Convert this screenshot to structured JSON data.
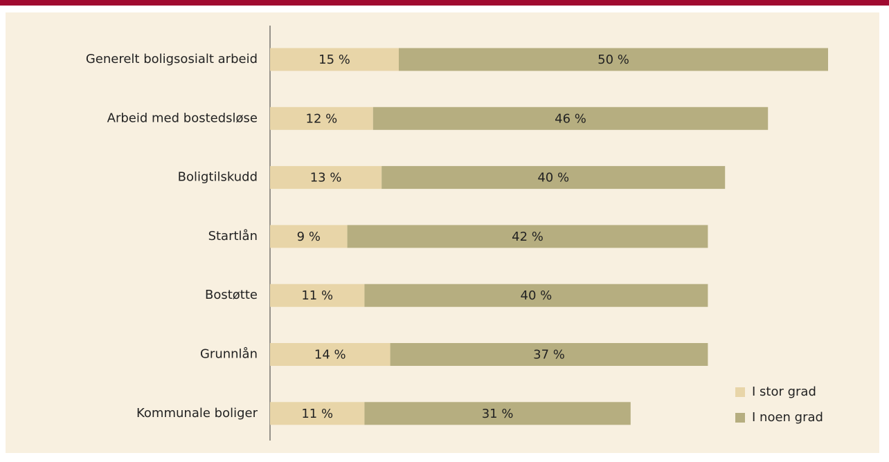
{
  "chart_data": {
    "type": "stacked-bar-horizontal",
    "categories": [
      "Generelt boligsosialt arbeid",
      "Arbeid med bostedsløse",
      "Boligtilskudd",
      "Startlån",
      "Bostøtte",
      "Grunnlån",
      "Kommunale boliger"
    ],
    "series": [
      {
        "name": "I stor grad",
        "color": "#e8d5a8",
        "values": [
          15,
          12,
          13,
          9,
          11,
          14,
          11
        ],
        "value_labels": [
          "15 %",
          "12 %",
          "13 %",
          "9 %",
          "11 %",
          "14 %",
          "11 %"
        ]
      },
      {
        "name": "I noen grad",
        "color": "#b6ae80",
        "values": [
          50,
          46,
          40,
          42,
          40,
          37,
          31
        ],
        "value_labels": [
          "50 %",
          "46 %",
          "40 %",
          "42 %",
          "40 %",
          "37 %",
          "31 %"
        ]
      }
    ],
    "legend": "bottom-right"
  }
}
